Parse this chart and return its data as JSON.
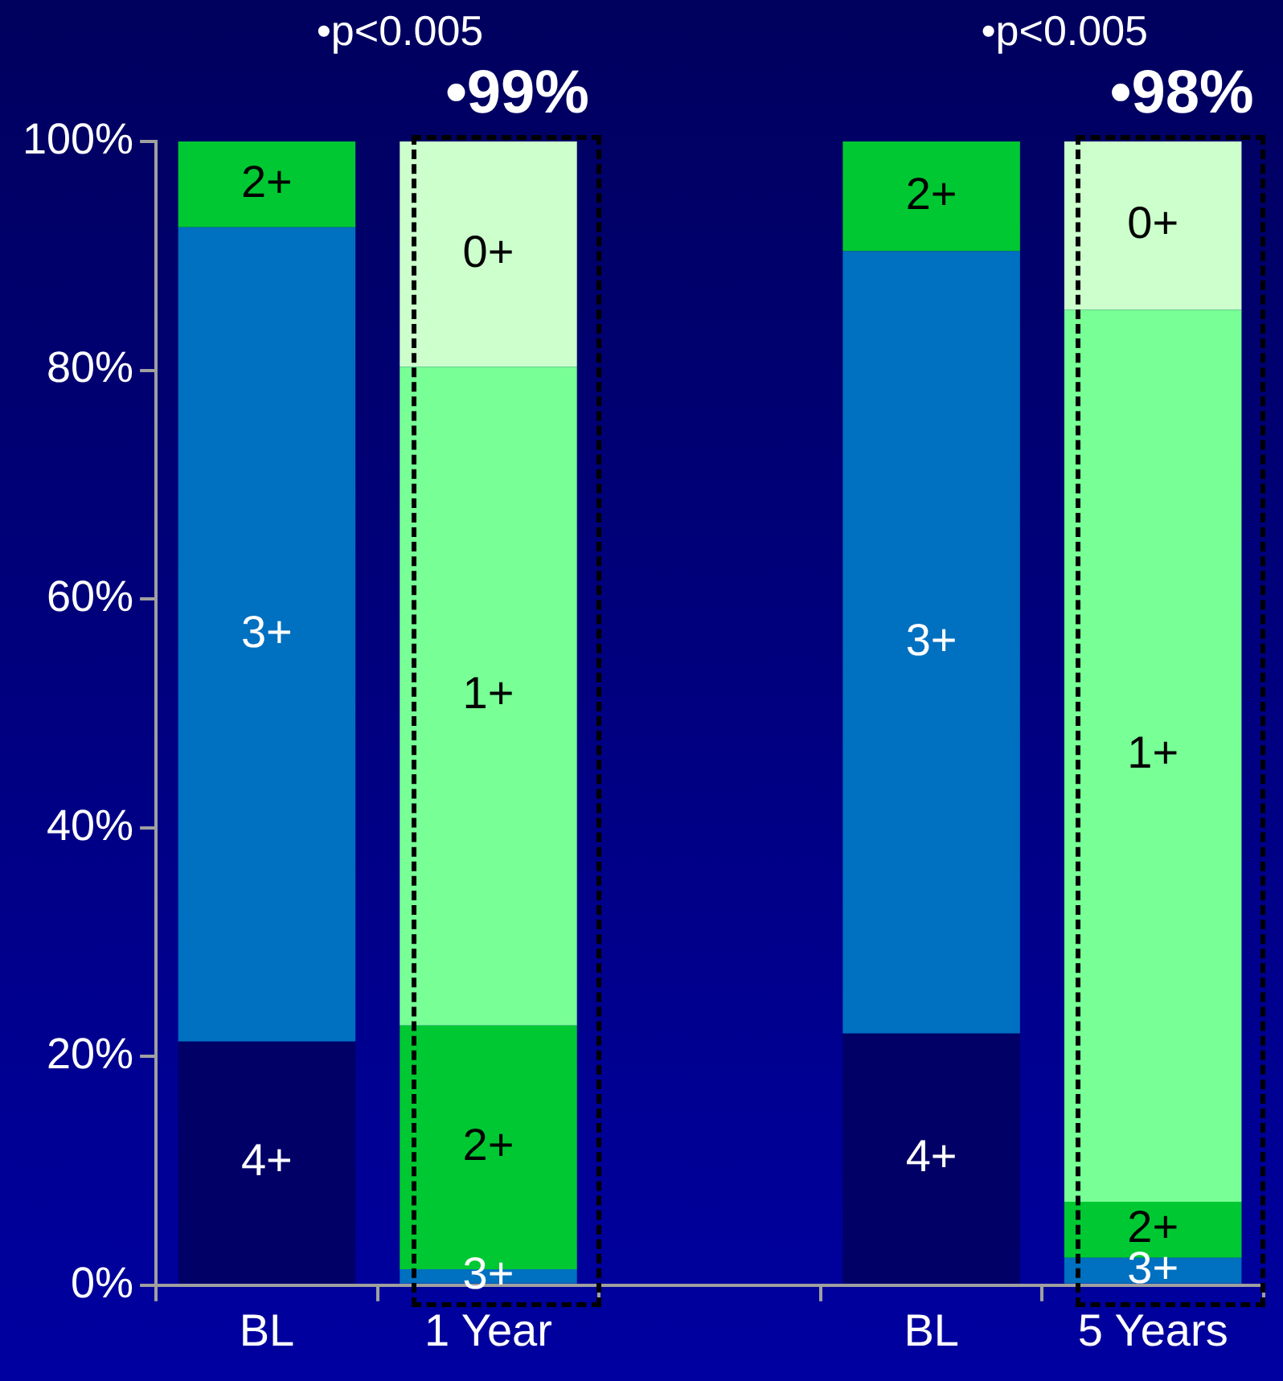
{
  "chart_data": {
    "type": "bar",
    "stacked": true,
    "categories": [
      "BL",
      "1 Year",
      null,
      "BL",
      "5 Years"
    ],
    "series": [
      {
        "name": "4+",
        "color": "#000066",
        "values": [
          21.3,
          null,
          null,
          22.0,
          null
        ]
      },
      {
        "name": "3+",
        "color": "#0070c0",
        "values": [
          71.2,
          1.4,
          null,
          68.4,
          2.4
        ]
      },
      {
        "name": "2+",
        "color": "#00c832",
        "values": [
          7.5,
          21.3,
          null,
          9.6,
          4.9
        ]
      },
      {
        "name": "1+",
        "color": "#78ff96",
        "values": [
          null,
          57.6,
          null,
          null,
          78.0
        ]
      },
      {
        "name": "0+",
        "color": "#ccffcc",
        "values": [
          null,
          19.7,
          null,
          null,
          14.7
        ]
      }
    ],
    "ylim": [
      0,
      100
    ],
    "yticks": [
      {
        "value": 0,
        "label": "0%"
      },
      {
        "value": 20,
        "label": "20%"
      },
      {
        "value": 40,
        "label": "40%"
      },
      {
        "value": 60,
        "label": "60%"
      },
      {
        "value": 80,
        "label": "80%"
      },
      {
        "value": 100,
        "label": "100%"
      }
    ],
    "annotations": [
      "•p<0.005",
      "•p<0.005",
      {
        "text": "•99%",
        "x": "1 Year",
        "y": 100
      },
      {
        "text": "•98%",
        "x": "5 Years",
        "y": 100
      }
    ],
    "grid": false,
    "legend": false
  }
}
